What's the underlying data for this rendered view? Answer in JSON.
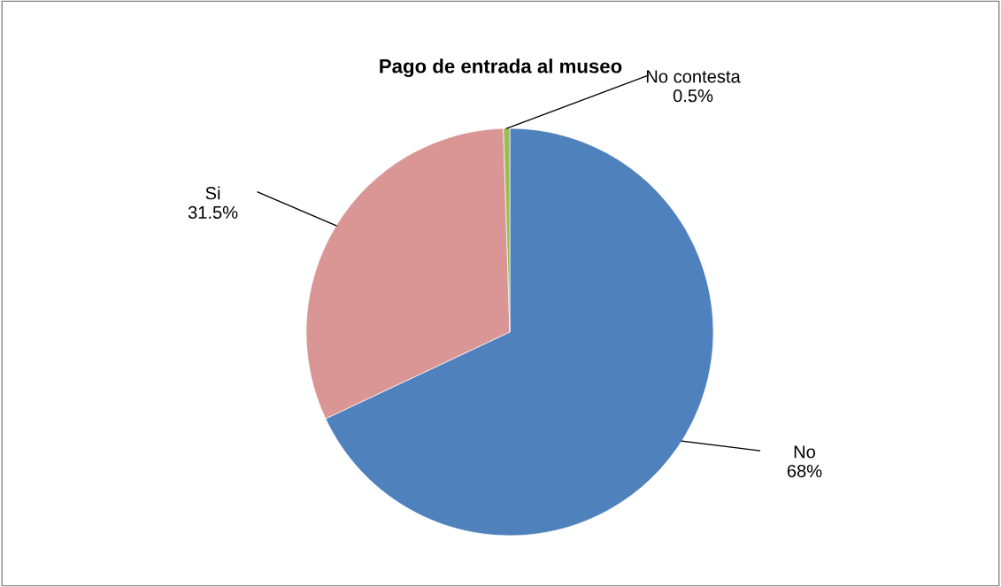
{
  "chart_data": {
    "type": "pie",
    "title": "Pago de entrada al museo",
    "categories": [
      "No",
      "Si",
      "No contesta"
    ],
    "values": [
      68,
      31.5,
      0.5
    ],
    "colors": [
      "#4f81bd",
      "#d99694",
      "#9bbb59"
    ],
    "value_labels": [
      "68%",
      "31.5%",
      "0.5%"
    ],
    "legend": false
  }
}
